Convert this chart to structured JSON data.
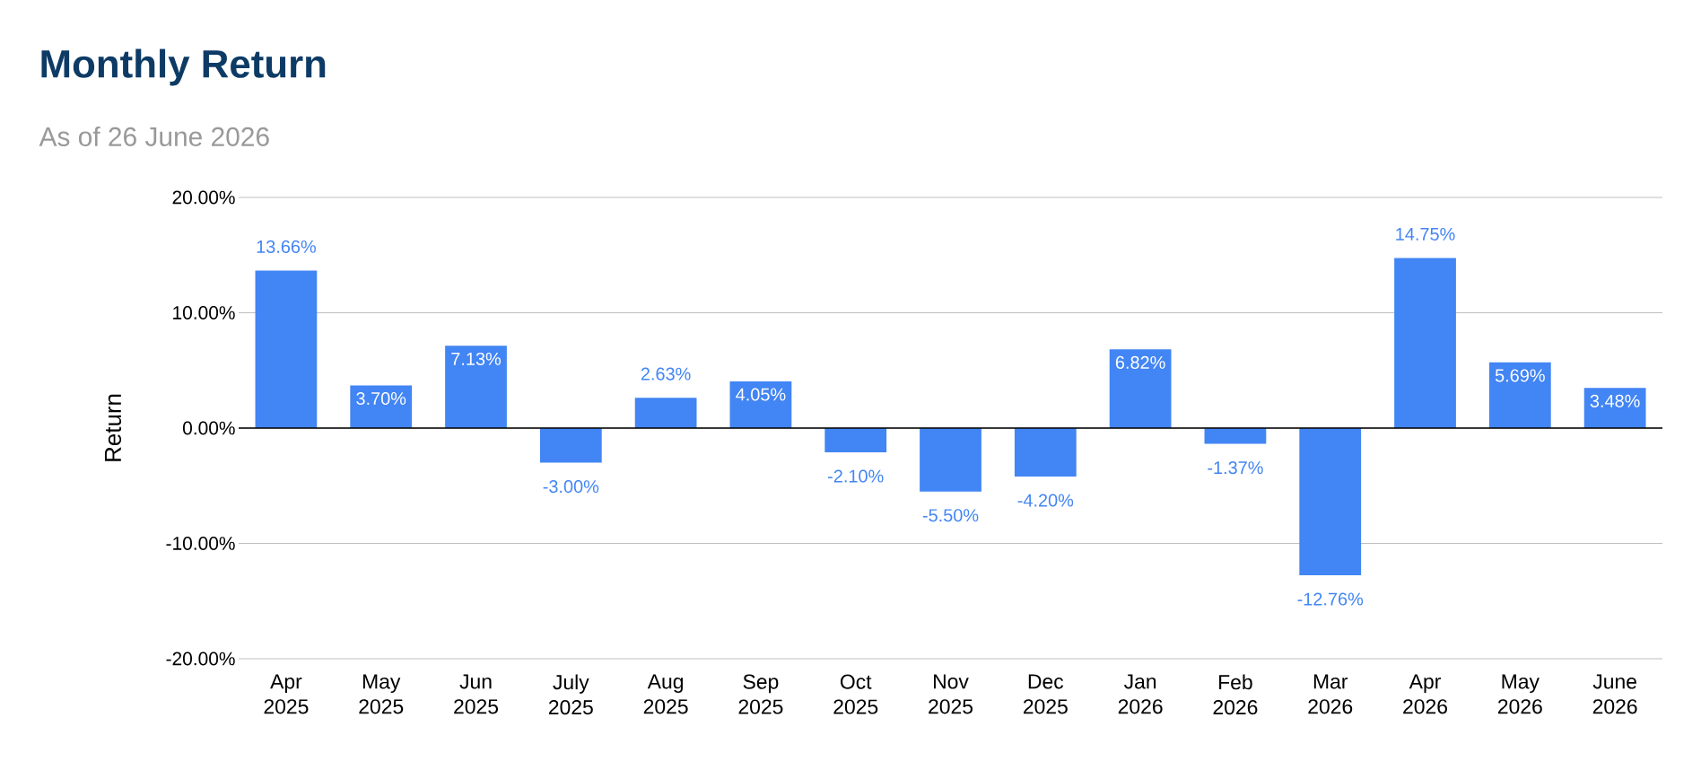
{
  "chart_data": {
    "type": "bar",
    "title": "Monthly Return",
    "subtitle": "As of 26 June 2026",
    "ylabel": "Return",
    "categories": [
      "Apr 2025",
      "May 2025",
      "Jun 2025",
      "July 2025",
      "Aug 2025",
      "Sep 2025",
      "Oct 2025",
      "Nov 2025",
      "Dec 2025",
      "Jan 2026",
      "Feb 2026",
      "Mar 2026",
      "Apr 2026",
      "May 2026",
      "June 2026"
    ],
    "values": [
      13.66,
      3.7,
      7.13,
      -3.0,
      2.63,
      4.05,
      -2.1,
      -5.5,
      -4.2,
      6.82,
      -1.37,
      -12.76,
      14.75,
      5.69,
      3.48
    ],
    "value_labels": [
      "13.66%",
      "3.70%",
      "7.13%",
      "-3.00%",
      "2.63%",
      "4.05%",
      "-2.10%",
      "-5.50%",
      "-4.20%",
      "6.82%",
      "-1.37%",
      "-12.76%",
      "14.75%",
      "5.69%",
      "3.48%"
    ],
    "color": "#4285f4",
    "ylim": [
      -20,
      20
    ],
    "yticks": [
      {
        "value": -20,
        "label": "-20.00%"
      },
      {
        "value": -10,
        "label": "-10.00%"
      },
      {
        "value": 0,
        "label": "0.00%"
      },
      {
        "value": 10,
        "label": "10.00%"
      },
      {
        "value": 20,
        "label": "20.00%"
      }
    ],
    "grid": "y"
  }
}
